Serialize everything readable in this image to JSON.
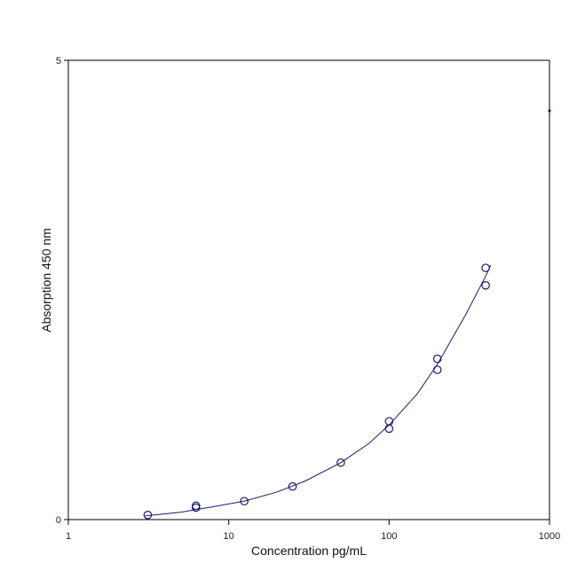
{
  "chart_data": {
    "type": "scatter",
    "title": "",
    "xlabel": "Concentration pg/mL",
    "ylabel": "Absorption 450 nm",
    "x_scale": "log",
    "xlim": [
      1,
      1000
    ],
    "ylim": [
      0,
      5
    ],
    "x_ticks": [
      "1",
      "10",
      "100",
      "1000"
    ],
    "y_ticks": [
      "0",
      "5"
    ],
    "grid": false,
    "legend": "none",
    "colors": {
      "marker": "#1a1a6e",
      "curve": "#1a1a6e",
      "axis": "#000000"
    },
    "series": [
      {
        "type": "scatter",
        "marker": "open-circle",
        "points": [
          {
            "x": 3.125,
            "y": 0.05
          },
          {
            "x": 6.25,
            "y": 0.13
          },
          {
            "x": 6.25,
            "y": 0.15
          },
          {
            "x": 12.5,
            "y": 0.2
          },
          {
            "x": 25,
            "y": 0.36
          },
          {
            "x": 50,
            "y": 0.62
          },
          {
            "x": 100,
            "y": 0.99
          },
          {
            "x": 100,
            "y": 1.07
          },
          {
            "x": 200,
            "y": 1.63
          },
          {
            "x": 200,
            "y": 1.75
          },
          {
            "x": 400,
            "y": 2.55
          },
          {
            "x": 400,
            "y": 2.74
          }
        ]
      },
      {
        "type": "line",
        "curve": "fit",
        "points": [
          {
            "x": 3,
            "y": 0.04
          },
          {
            "x": 5,
            "y": 0.08
          },
          {
            "x": 8,
            "y": 0.14
          },
          {
            "x": 12.5,
            "y": 0.2
          },
          {
            "x": 20,
            "y": 0.3
          },
          {
            "x": 30,
            "y": 0.42
          },
          {
            "x": 50,
            "y": 0.62
          },
          {
            "x": 75,
            "y": 0.83
          },
          {
            "x": 100,
            "y": 1.03
          },
          {
            "x": 150,
            "y": 1.37
          },
          {
            "x": 200,
            "y": 1.69
          },
          {
            "x": 300,
            "y": 2.23
          },
          {
            "x": 400,
            "y": 2.65
          },
          {
            "x": 430,
            "y": 2.77
          }
        ]
      },
      {
        "type": "scatter",
        "marker": "dot",
        "points": [
          {
            "x": 1000,
            "y": 4.45
          }
        ]
      }
    ]
  }
}
